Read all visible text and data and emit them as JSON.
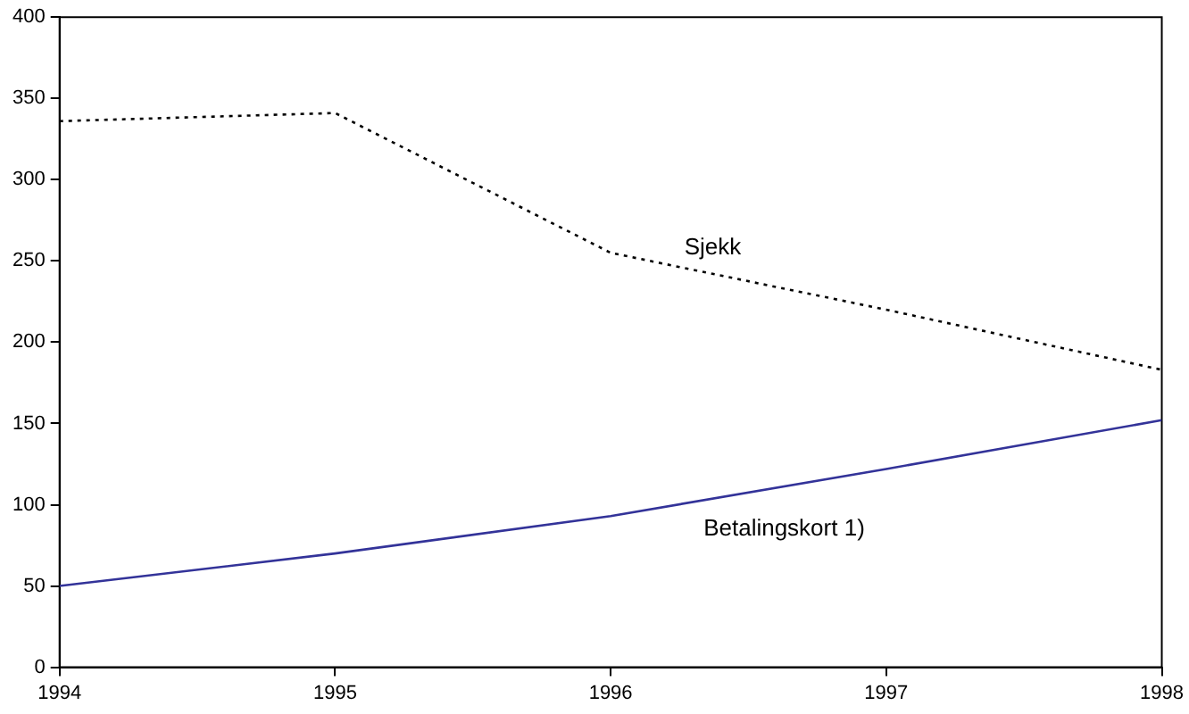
{
  "chart_data": {
    "type": "line",
    "x": [
      1994,
      1995,
      1996,
      1997,
      1998
    ],
    "series": [
      {
        "name": "Sjekk",
        "color": "#000000",
        "line_style": "dotted",
        "values": [
          336,
          341,
          255,
          220,
          183
        ]
      },
      {
        "name": "Betalingskort 1)",
        "color": "#333399",
        "line_style": "solid",
        "values": [
          50,
          70,
          93,
          122,
          152
        ]
      }
    ],
    "xlim": [
      1994,
      1998
    ],
    "xticks": [
      1994,
      1995,
      1996,
      1997,
      1998
    ],
    "ylim": [
      0,
      400
    ],
    "yticks": [
      0,
      50,
      100,
      150,
      200,
      250,
      300,
      350,
      400
    ],
    "grid": false,
    "legend": false,
    "marker": "none"
  }
}
